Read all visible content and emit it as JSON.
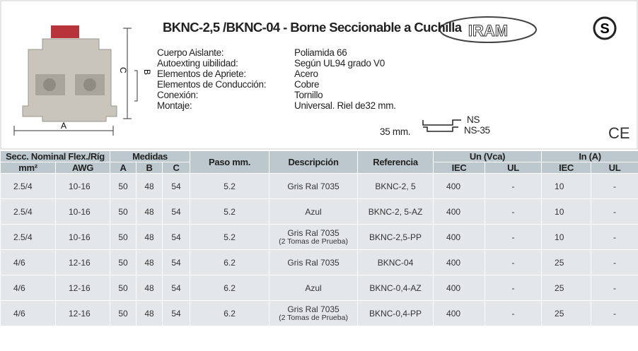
{
  "header": {
    "title": "BKNC-2,5 /BKNC-04 - Borne Seccionable  a Cuchilla",
    "logos": {
      "iram": "IRAM",
      "s": "S",
      "ce": "CE"
    },
    "dimensions": {
      "a": "A",
      "b": "B",
      "c": "C"
    }
  },
  "specs": [
    {
      "label": "Cuerpo Aislante:",
      "value": "Poliamida 66"
    },
    {
      "label": "Autoexting uibilidad:",
      "value": "Según UL94 grado V0"
    },
    {
      "label": "Elementos de Apriete:",
      "value": "Acero"
    },
    {
      "label": "Elementos de Conducción:",
      "value": "Cobre"
    },
    {
      "label": "Conexión:",
      "value": "Tornillo"
    },
    {
      "label": "Montaje:",
      "value": "Universal. Riel de32 mm."
    }
  ],
  "rails": [
    {
      "size": "35 mm.",
      "ns": "NS"
    },
    {
      "ns": "NS-35"
    }
  ],
  "table": {
    "group_headers": [
      "Secc. Nominal Flex./Ríg",
      "Medidas",
      "Paso mm.",
      "Descripción",
      "Referencia",
      "Un (Vca)",
      "In (A)"
    ],
    "sub_headers": [
      "mm²",
      "AWG",
      "A",
      "B",
      "C",
      "IEC",
      "UL",
      "IEC",
      "UL"
    ],
    "rows": [
      [
        "2.5/4",
        "10-16",
        "50",
        "48",
        "54",
        "5.2",
        [
          "Gris Ral 7035"
        ],
        "BKNC-2, 5",
        "400",
        "-",
        "10",
        "-"
      ],
      [
        "2.5/4",
        "10-16",
        "50",
        "48",
        "54",
        "5.2",
        [
          "Azul"
        ],
        "BKNC-2, 5-AZ",
        "400",
        "-",
        "10",
        "-"
      ],
      [
        "2.5/4",
        "10-16",
        "50",
        "48",
        "54",
        "5.2",
        [
          "Gris Ral 7035",
          "(2 Tomas de Prueba)"
        ],
        "BKNC-2,5-PP",
        "400",
        "-",
        "10",
        "-"
      ],
      [
        "4/6",
        "12-16",
        "50",
        "48",
        "54",
        "6.2",
        [
          "Gris Ral 7035"
        ],
        "BKNC-04",
        "400",
        "-",
        "25",
        "-"
      ],
      [
        "4/6",
        "12-16",
        "50",
        "48",
        "54",
        "6.2",
        [
          "Azul"
        ],
        "BKNC-0,4-AZ",
        "400",
        "-",
        "25",
        "-"
      ],
      [
        "4/6",
        "12-16",
        "50",
        "48",
        "54",
        "6.2",
        [
          "Gris Ral 7035",
          "(2 Tomas de Prueba)"
        ],
        "BKNC-0,4-PP",
        "400",
        "-",
        "25",
        "-"
      ]
    ]
  }
}
